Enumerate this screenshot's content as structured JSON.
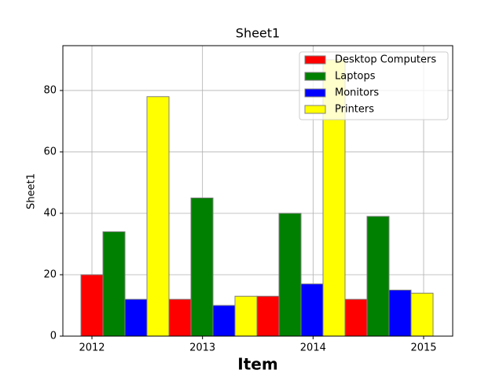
{
  "chart_data": {
    "type": "bar",
    "title": "Sheet1",
    "x_label": "Item",
    "y_label": "Sheet1",
    "categories": [
      "2012",
      "2013",
      "2014",
      "2015"
    ],
    "series": [
      {
        "name": "Desktop Computers",
        "color": "#ff0000",
        "values": [
          20,
          12,
          13,
          12
        ]
      },
      {
        "name": "Laptops",
        "color": "#008000",
        "values": [
          34,
          45,
          40,
          39
        ]
      },
      {
        "name": "Monitors",
        "color": "#0000ff",
        "values": [
          12,
          10,
          17,
          15
        ]
      },
      {
        "name": "Printers",
        "color": "#ffff00",
        "values": [
          78,
          13,
          90,
          14
        ]
      }
    ],
    "ylim": [
      0,
      94.6
    ],
    "yticks": [
      0,
      20,
      40,
      60,
      80
    ],
    "grid": true,
    "legend": "upper right"
  }
}
